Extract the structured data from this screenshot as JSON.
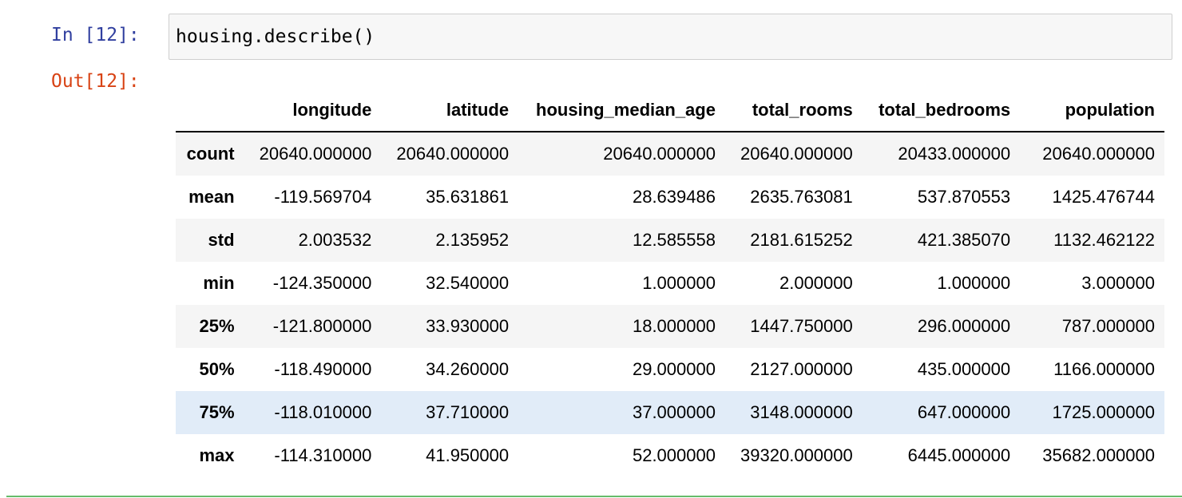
{
  "cell": {
    "in_prompt": "In [12]:",
    "code": "housing.describe()",
    "out_prompt": "Out[12]:"
  },
  "table": {
    "columns": [
      "longitude",
      "latitude",
      "housing_median_age",
      "total_rooms",
      "total_bedrooms",
      "population"
    ],
    "rows": [
      [
        "count",
        "20640.000000",
        "20640.000000",
        "20640.000000",
        "20640.000000",
        "20433.000000",
        "20640.000000"
      ],
      [
        "mean",
        "-119.569704",
        "35.631861",
        "28.639486",
        "2635.763081",
        "537.870553",
        "1425.476744"
      ],
      [
        "std",
        "2.003532",
        "2.135952",
        "12.585558",
        "2181.615252",
        "421.385070",
        "1132.462122"
      ],
      [
        "min",
        "-124.350000",
        "32.540000",
        "1.000000",
        "2.000000",
        "1.000000",
        "3.000000"
      ],
      [
        "25%",
        "-121.800000",
        "33.930000",
        "18.000000",
        "1447.750000",
        "296.000000",
        "787.000000"
      ],
      [
        "50%",
        "-118.490000",
        "34.260000",
        "29.000000",
        "2127.000000",
        "435.000000",
        "1166.000000"
      ],
      [
        "75%",
        "-118.010000",
        "37.710000",
        "37.000000",
        "3148.000000",
        "647.000000",
        "1725.000000"
      ],
      [
        "max",
        "-114.310000",
        "41.950000",
        "52.000000",
        "39320.000000",
        "6445.000000",
        "35682.000000"
      ]
    ]
  }
}
